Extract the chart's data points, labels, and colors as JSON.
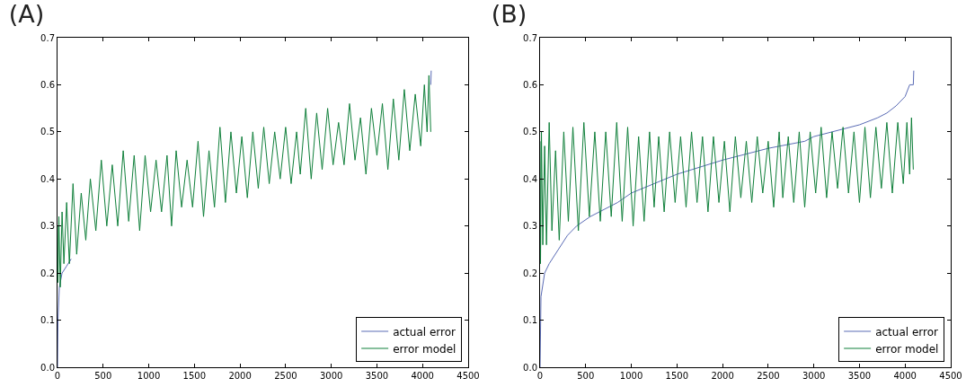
{
  "chart_data": [
    {
      "type": "line",
      "title": "(A)",
      "xlim": [
        0,
        4500
      ],
      "ylim": [
        0,
        0.7
      ],
      "xticks": [
        0,
        500,
        1000,
        1500,
        2000,
        2500,
        3000,
        3500,
        4000,
        4500
      ],
      "yticks": [
        {
          "value": 0,
          "label": "0.0"
        },
        0.1,
        0.2,
        0.3,
        0.4,
        0.5,
        0.6,
        0.7
      ],
      "grid": false,
      "legend": "bottom right",
      "marker": "none",
      "line_style": "solid",
      "series": [
        {
          "name": "actual error",
          "color": "#5a6bb5",
          "x": [
            0,
            5,
            20,
            50,
            100,
            150,
            2000,
            4090,
            4095
          ],
          "values": [
            0,
            0.1,
            0.17,
            0.2,
            0.215,
            0.23,
            null,
            0.6,
            0.63
          ]
        },
        {
          "name": "error model",
          "color": "#0f7f3a",
          "x": [
            0,
            5,
            15,
            30,
            50,
            70,
            100,
            130,
            170,
            210,
            260,
            310,
            360,
            420,
            480,
            540,
            600,
            660,
            720,
            780,
            840,
            900,
            960,
            1020,
            1080,
            1140,
            1200,
            1250,
            1300,
            1360,
            1420,
            1480,
            1540,
            1600,
            1660,
            1720,
            1780,
            1840,
            1900,
            1960,
            2020,
            2080,
            2140,
            2200,
            2260,
            2320,
            2380,
            2440,
            2500,
            2560,
            2620,
            2660,
            2720,
            2780,
            2840,
            2900,
            2960,
            3020,
            3080,
            3140,
            3200,
            3260,
            3320,
            3380,
            3440,
            3500,
            3560,
            3620,
            3680,
            3740,
            3800,
            3860,
            3920,
            3980,
            4020,
            4050,
            4070,
            4090
          ],
          "values": [
            0.3,
            0.18,
            0.32,
            0.17,
            0.33,
            0.22,
            0.35,
            0.22,
            0.39,
            0.24,
            0.37,
            0.27,
            0.4,
            0.29,
            0.44,
            0.3,
            0.43,
            0.3,
            0.46,
            0.31,
            0.45,
            0.29,
            0.45,
            0.33,
            0.44,
            0.33,
            0.45,
            0.3,
            0.46,
            0.34,
            0.44,
            0.34,
            0.48,
            0.32,
            0.46,
            0.34,
            0.51,
            0.35,
            0.5,
            0.37,
            0.49,
            0.36,
            0.5,
            0.38,
            0.51,
            0.39,
            0.5,
            0.4,
            0.51,
            0.39,
            0.5,
            0.41,
            0.55,
            0.4,
            0.54,
            0.42,
            0.55,
            0.43,
            0.52,
            0.43,
            0.56,
            0.44,
            0.53,
            0.41,
            0.55,
            0.45,
            0.56,
            0.42,
            0.57,
            0.44,
            0.59,
            0.46,
            0.58,
            0.47,
            0.6,
            0.5,
            0.62,
            0.5
          ]
        }
      ]
    },
    {
      "type": "line",
      "title": "(B)",
      "xlim": [
        0,
        4500
      ],
      "ylim": [
        0,
        0.7
      ],
      "xticks": [
        0,
        500,
        1000,
        1500,
        2000,
        2500,
        3000,
        3500,
        4000,
        4500
      ],
      "yticks": [
        {
          "value": 0,
          "label": "0.0"
        },
        0.1,
        0.2,
        0.3,
        0.4,
        0.5,
        0.6,
        0.7
      ],
      "grid": false,
      "legend": "bottom right",
      "marker": "none",
      "line_style": "solid",
      "series": [
        {
          "name": "actual error",
          "color": "#5a6bb5",
          "x": [
            0,
            10,
            50,
            100,
            200,
            300,
            400,
            550,
            700,
            850,
            1000,
            1500,
            2000,
            2500,
            2900,
            3000,
            3200,
            3500,
            3700,
            3800,
            3900,
            4000,
            4050,
            4090,
            4095
          ],
          "values": [
            0,
            0.15,
            0.2,
            0.22,
            0.25,
            0.28,
            0.3,
            0.32,
            0.335,
            0.35,
            0.37,
            0.41,
            0.44,
            0.465,
            0.48,
            0.49,
            0.5,
            0.515,
            0.53,
            0.54,
            0.555,
            0.575,
            0.6,
            0.6,
            0.63
          ]
        },
        {
          "name": "error model",
          "color": "#0f7f3a",
          "x": [
            0,
            5,
            15,
            30,
            50,
            70,
            100,
            130,
            170,
            210,
            260,
            310,
            360,
            420,
            480,
            540,
            600,
            660,
            720,
            780,
            840,
            900,
            960,
            1020,
            1080,
            1140,
            1200,
            1250,
            1300,
            1360,
            1420,
            1480,
            1540,
            1600,
            1660,
            1720,
            1780,
            1840,
            1900,
            1960,
            2020,
            2080,
            2140,
            2200,
            2260,
            2320,
            2380,
            2440,
            2500,
            2560,
            2620,
            2660,
            2720,
            2780,
            2840,
            2900,
            2960,
            3020,
            3080,
            3140,
            3200,
            3260,
            3320,
            3380,
            3440,
            3500,
            3560,
            3620,
            3680,
            3740,
            3800,
            3860,
            3920,
            3980,
            4020,
            4050,
            4070,
            4090
          ],
          "values": [
            0.48,
            0.22,
            0.5,
            0.26,
            0.47,
            0.26,
            0.52,
            0.29,
            0.46,
            0.27,
            0.5,
            0.31,
            0.51,
            0.29,
            0.52,
            0.32,
            0.5,
            0.31,
            0.5,
            0.32,
            0.52,
            0.31,
            0.51,
            0.3,
            0.49,
            0.31,
            0.5,
            0.34,
            0.49,
            0.33,
            0.5,
            0.35,
            0.49,
            0.34,
            0.5,
            0.35,
            0.49,
            0.33,
            0.49,
            0.35,
            0.48,
            0.33,
            0.49,
            0.36,
            0.48,
            0.35,
            0.49,
            0.37,
            0.48,
            0.34,
            0.5,
            0.36,
            0.49,
            0.35,
            0.5,
            0.34,
            0.5,
            0.37,
            0.51,
            0.36,
            0.5,
            0.38,
            0.51,
            0.37,
            0.5,
            0.35,
            0.51,
            0.36,
            0.51,
            0.38,
            0.52,
            0.37,
            0.52,
            0.39,
            0.52,
            0.41,
            0.53,
            0.42
          ]
        }
      ]
    }
  ]
}
